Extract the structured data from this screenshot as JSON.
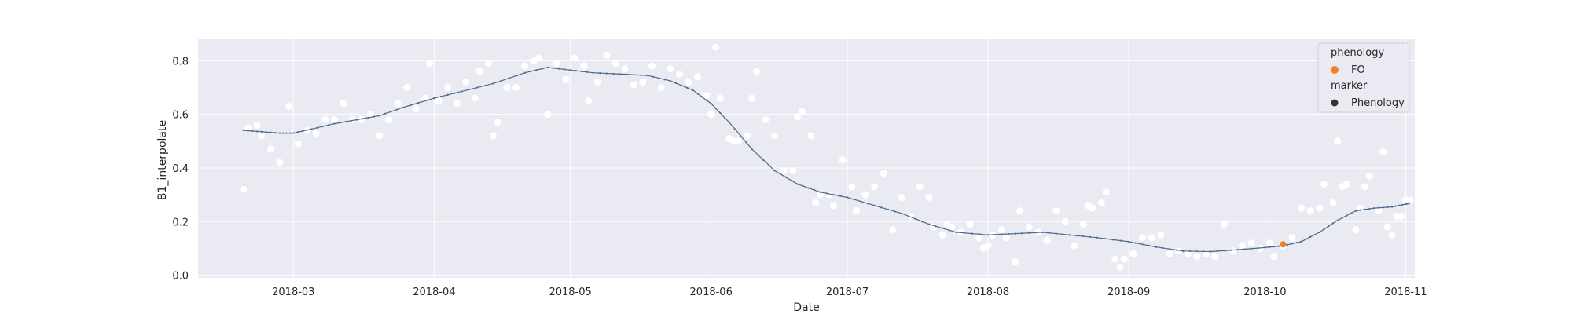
{
  "chart_data": {
    "type": "scatter",
    "xlabel": "Date",
    "ylabel": "B1_interpolate",
    "x_type": "date",
    "xlim": [
      "2018-02-08",
      "2018-11-03"
    ],
    "ylim": [
      -0.01,
      0.88
    ],
    "x_ticks": [
      "2018-03-01",
      "2018-04-01",
      "2018-05-01",
      "2018-06-01",
      "2018-07-01",
      "2018-08-01",
      "2018-09-01",
      "2018-10-01",
      "2018-11-01"
    ],
    "x_tick_labels": [
      "2018-03",
      "2018-04",
      "2018-05",
      "2018-06",
      "2018-07",
      "2018-08",
      "2018-09",
      "2018-10",
      "2018-11"
    ],
    "y_ticks": [
      0.0,
      0.2,
      0.4,
      0.6,
      0.8
    ],
    "y_tick_labels": [
      "0.0",
      "0.2",
      "0.4",
      "0.6",
      "0.8"
    ],
    "grid": true,
    "background": "#EAEAF2",
    "colors": {
      "observations": "#FFFFFF",
      "curve": "#4C6A8A",
      "fo": "#F0802A",
      "marker_legend": "#333333"
    },
    "series": [
      {
        "role": "observations",
        "points": [
          [
            "2018-02-18",
            0.32
          ],
          [
            "2018-02-19",
            0.55
          ],
          [
            "2018-02-21",
            0.56
          ],
          [
            "2018-02-22",
            0.52
          ],
          [
            "2018-02-24",
            0.47
          ],
          [
            "2018-02-26",
            0.42
          ],
          [
            "2018-02-28",
            0.63
          ],
          [
            "2018-03-02",
            0.49
          ],
          [
            "2018-03-04",
            0.54
          ],
          [
            "2018-03-06",
            0.53
          ],
          [
            "2018-03-08",
            0.58
          ],
          [
            "2018-03-10",
            0.58
          ],
          [
            "2018-03-12",
            0.64
          ],
          [
            "2018-03-14",
            0.58
          ],
          [
            "2018-03-16",
            0.58
          ],
          [
            "2018-03-18",
            0.6
          ],
          [
            "2018-03-20",
            0.52
          ],
          [
            "2018-03-22",
            0.58
          ],
          [
            "2018-03-24",
            0.64
          ],
          [
            "2018-03-26",
            0.7
          ],
          [
            "2018-03-28",
            0.62
          ],
          [
            "2018-03-30",
            0.66
          ],
          [
            "2018-03-31",
            0.79
          ],
          [
            "2018-04-02",
            0.65
          ],
          [
            "2018-04-04",
            0.7
          ],
          [
            "2018-04-06",
            0.64
          ],
          [
            "2018-04-08",
            0.72
          ],
          [
            "2018-04-10",
            0.66
          ],
          [
            "2018-04-11",
            0.76
          ],
          [
            "2018-04-13",
            0.79
          ],
          [
            "2018-04-14",
            0.52
          ],
          [
            "2018-04-15",
            0.57
          ],
          [
            "2018-04-17",
            0.7
          ],
          [
            "2018-04-19",
            0.7
          ],
          [
            "2018-04-21",
            0.78
          ],
          [
            "2018-04-23",
            0.8
          ],
          [
            "2018-04-24",
            0.81
          ],
          [
            "2018-04-26",
            0.6
          ],
          [
            "2018-04-28",
            0.79
          ],
          [
            "2018-04-30",
            0.73
          ],
          [
            "2018-05-02",
            0.81
          ],
          [
            "2018-05-04",
            0.78
          ],
          [
            "2018-05-05",
            0.65
          ],
          [
            "2018-05-07",
            0.72
          ],
          [
            "2018-05-09",
            0.82
          ],
          [
            "2018-05-11",
            0.79
          ],
          [
            "2018-05-13",
            0.77
          ],
          [
            "2018-05-15",
            0.71
          ],
          [
            "2018-05-17",
            0.72
          ],
          [
            "2018-05-19",
            0.78
          ],
          [
            "2018-05-21",
            0.7
          ],
          [
            "2018-05-23",
            0.77
          ],
          [
            "2018-05-25",
            0.75
          ],
          [
            "2018-05-27",
            0.72
          ],
          [
            "2018-05-29",
            0.74
          ],
          [
            "2018-05-31",
            0.67
          ],
          [
            "2018-06-01",
            0.6
          ],
          [
            "2018-06-02",
            0.85
          ],
          [
            "2018-06-03",
            0.66
          ],
          [
            "2018-06-05",
            0.51
          ],
          [
            "2018-06-06",
            0.5
          ],
          [
            "2018-06-07",
            0.5
          ],
          [
            "2018-06-09",
            0.52
          ],
          [
            "2018-06-10",
            0.66
          ],
          [
            "2018-06-11",
            0.76
          ],
          [
            "2018-06-13",
            0.58
          ],
          [
            "2018-06-15",
            0.52
          ],
          [
            "2018-06-17",
            0.39
          ],
          [
            "2018-06-19",
            0.39
          ],
          [
            "2018-06-20",
            0.59
          ],
          [
            "2018-06-21",
            0.61
          ],
          [
            "2018-06-23",
            0.52
          ],
          [
            "2018-06-24",
            0.27
          ],
          [
            "2018-06-25",
            0.3
          ],
          [
            "2018-06-27",
            0.3
          ],
          [
            "2018-06-28",
            0.26
          ],
          [
            "2018-06-30",
            0.43
          ],
          [
            "2018-07-02",
            0.33
          ],
          [
            "2018-07-03",
            0.24
          ],
          [
            "2018-07-05",
            0.3
          ],
          [
            "2018-07-07",
            0.33
          ],
          [
            "2018-07-09",
            0.38
          ],
          [
            "2018-07-11",
            0.17
          ],
          [
            "2018-07-13",
            0.29
          ],
          [
            "2018-07-15",
            0.22
          ],
          [
            "2018-07-17",
            0.33
          ],
          [
            "2018-07-19",
            0.29
          ],
          [
            "2018-07-20",
            0.18
          ],
          [
            "2018-07-22",
            0.15
          ],
          [
            "2018-07-23",
            0.19
          ],
          [
            "2018-07-24",
            0.18
          ],
          [
            "2018-07-26",
            0.16
          ],
          [
            "2018-07-28",
            0.19
          ],
          [
            "2018-07-30",
            0.14
          ],
          [
            "2018-07-31",
            0.1
          ],
          [
            "2018-08-01",
            0.11
          ],
          [
            "2018-08-02",
            0.15
          ],
          [
            "2018-08-04",
            0.17
          ],
          [
            "2018-08-05",
            0.14
          ],
          [
            "2018-08-07",
            0.05
          ],
          [
            "2018-08-08",
            0.24
          ],
          [
            "2018-08-10",
            0.18
          ],
          [
            "2018-08-12",
            0.16
          ],
          [
            "2018-08-14",
            0.13
          ],
          [
            "2018-08-16",
            0.24
          ],
          [
            "2018-08-18",
            0.2
          ],
          [
            "2018-08-20",
            0.11
          ],
          [
            "2018-08-22",
            0.19
          ],
          [
            "2018-08-23",
            0.26
          ],
          [
            "2018-08-24",
            0.25
          ],
          [
            "2018-08-26",
            0.27
          ],
          [
            "2018-08-27",
            0.31
          ],
          [
            "2018-08-29",
            0.06
          ],
          [
            "2018-08-30",
            0.03
          ],
          [
            "2018-08-31",
            0.06
          ],
          [
            "2018-09-02",
            0.08
          ],
          [
            "2018-09-04",
            0.14
          ],
          [
            "2018-09-06",
            0.14
          ],
          [
            "2018-09-08",
            0.15
          ],
          [
            "2018-09-10",
            0.08
          ],
          [
            "2018-09-12",
            0.09
          ],
          [
            "2018-09-14",
            0.08
          ],
          [
            "2018-09-16",
            0.07
          ],
          [
            "2018-09-18",
            0.08
          ],
          [
            "2018-09-20",
            0.07
          ],
          [
            "2018-09-22",
            0.19
          ],
          [
            "2018-09-24",
            0.09
          ],
          [
            "2018-09-26",
            0.11
          ],
          [
            "2018-09-28",
            0.12
          ],
          [
            "2018-09-30",
            0.1
          ],
          [
            "2018-10-02",
            0.12
          ],
          [
            "2018-10-03",
            0.07
          ],
          [
            "2018-10-05",
            0.11
          ],
          [
            "2018-10-07",
            0.14
          ],
          [
            "2018-10-09",
            0.25
          ],
          [
            "2018-10-11",
            0.24
          ],
          [
            "2018-10-13",
            0.25
          ],
          [
            "2018-10-14",
            0.34
          ],
          [
            "2018-10-16",
            0.27
          ],
          [
            "2018-10-17",
            0.5
          ],
          [
            "2018-10-18",
            0.33
          ],
          [
            "2018-10-19",
            0.34
          ],
          [
            "2018-10-21",
            0.17
          ],
          [
            "2018-10-22",
            0.25
          ],
          [
            "2018-10-23",
            0.33
          ],
          [
            "2018-10-24",
            0.37
          ],
          [
            "2018-10-26",
            0.24
          ],
          [
            "2018-10-27",
            0.46
          ],
          [
            "2018-10-28",
            0.18
          ],
          [
            "2018-10-29",
            0.15
          ],
          [
            "2018-10-30",
            0.22
          ],
          [
            "2018-10-31",
            0.22
          ],
          [
            "2018-11-01",
            0.28
          ],
          [
            "2018-11-02",
            0.28
          ]
        ]
      },
      {
        "role": "curve",
        "points": [
          [
            "2018-02-18",
            0.54
          ],
          [
            "2018-02-22",
            0.535
          ],
          [
            "2018-02-26",
            0.53
          ],
          [
            "2018-03-01",
            0.53
          ],
          [
            "2018-03-05",
            0.545
          ],
          [
            "2018-03-10",
            0.565
          ],
          [
            "2018-03-15",
            0.58
          ],
          [
            "2018-03-20",
            0.595
          ],
          [
            "2018-03-25",
            0.625
          ],
          [
            "2018-04-01",
            0.66
          ],
          [
            "2018-04-07",
            0.685
          ],
          [
            "2018-04-14",
            0.715
          ],
          [
            "2018-04-21",
            0.755
          ],
          [
            "2018-04-26",
            0.775
          ],
          [
            "2018-05-01",
            0.765
          ],
          [
            "2018-05-06",
            0.755
          ],
          [
            "2018-05-12",
            0.75
          ],
          [
            "2018-05-18",
            0.745
          ],
          [
            "2018-05-23",
            0.725
          ],
          [
            "2018-05-28",
            0.69
          ],
          [
            "2018-06-01",
            0.64
          ],
          [
            "2018-06-05",
            0.57
          ],
          [
            "2018-06-10",
            0.47
          ],
          [
            "2018-06-15",
            0.39
          ],
          [
            "2018-06-20",
            0.34
          ],
          [
            "2018-06-25",
            0.31
          ],
          [
            "2018-07-01",
            0.29
          ],
          [
            "2018-07-07",
            0.26
          ],
          [
            "2018-07-13",
            0.23
          ],
          [
            "2018-07-19",
            0.19
          ],
          [
            "2018-07-25",
            0.16
          ],
          [
            "2018-08-01",
            0.15
          ],
          [
            "2018-08-07",
            0.155
          ],
          [
            "2018-08-13",
            0.16
          ],
          [
            "2018-08-19",
            0.15
          ],
          [
            "2018-08-25",
            0.14
          ],
          [
            "2018-09-01",
            0.125
          ],
          [
            "2018-09-07",
            0.105
          ],
          [
            "2018-09-13",
            0.09
          ],
          [
            "2018-09-19",
            0.088
          ],
          [
            "2018-09-25",
            0.095
          ],
          [
            "2018-10-01",
            0.103
          ],
          [
            "2018-10-05",
            0.11
          ],
          [
            "2018-10-09",
            0.125
          ],
          [
            "2018-10-13",
            0.16
          ],
          [
            "2018-10-17",
            0.205
          ],
          [
            "2018-10-21",
            0.24
          ],
          [
            "2018-10-25",
            0.25
          ],
          [
            "2018-10-29",
            0.255
          ],
          [
            "2018-11-01",
            0.265
          ],
          [
            "2018-11-02",
            0.27
          ]
        ]
      },
      {
        "role": "phenology",
        "name": "FO",
        "points": [
          [
            "2018-10-05",
            0.115
          ]
        ]
      }
    ],
    "legend": {
      "placement": "top-right",
      "title1": "phenology",
      "item1": "FO",
      "title2": "marker",
      "item2": "Phenology"
    }
  }
}
